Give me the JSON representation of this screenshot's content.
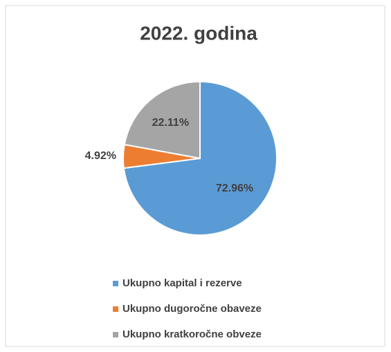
{
  "chart_data": {
    "type": "pie",
    "title": "2022. godina",
    "categories": [
      "Ukupno kapital i rezerve",
      "Ukupno dugoročne obaveze",
      "Ukupno kratkoročne obveze"
    ],
    "values": [
      72.96,
      4.92,
      22.11
    ],
    "value_labels": [
      "72.96%",
      "4.92%",
      "22.11%"
    ],
    "colors": [
      "#5b9bd5",
      "#ed7d31",
      "#a5a5a5"
    ],
    "legend": "bottom"
  }
}
